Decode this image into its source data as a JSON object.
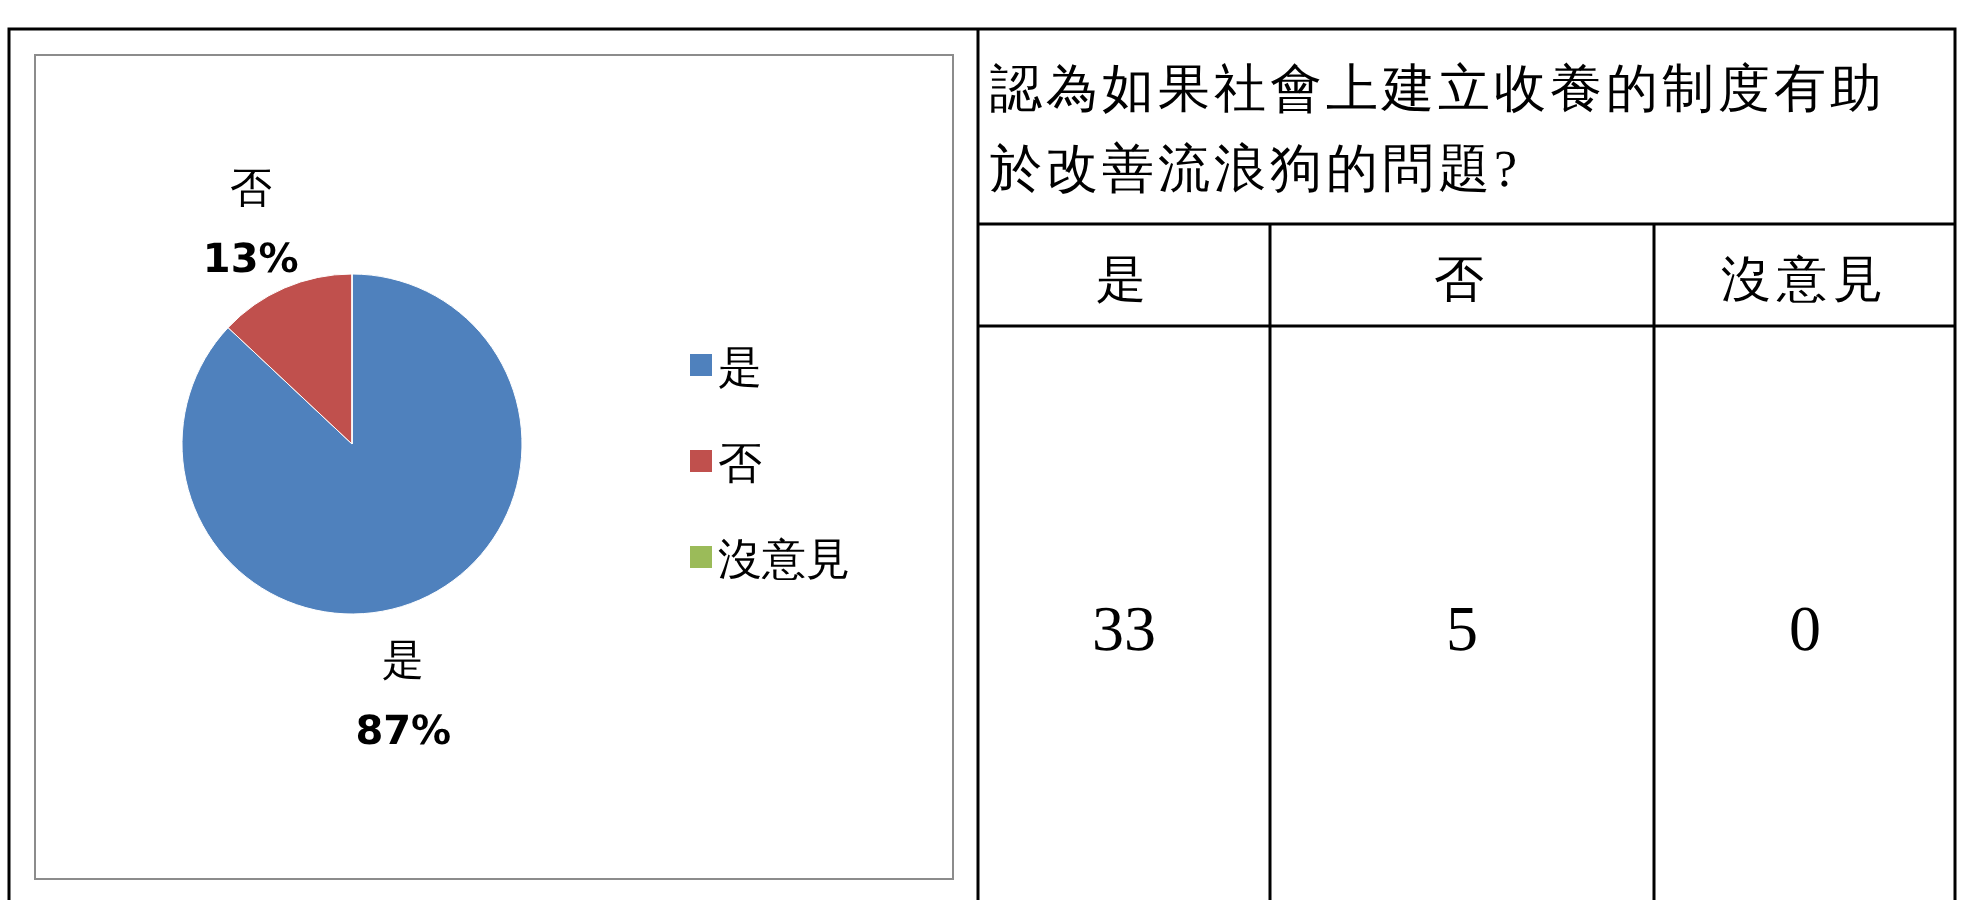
{
  "chart_data": [
    {
      "type": "pie",
      "categories": [
        "是",
        "否",
        "沒意見"
      ],
      "values": [
        87,
        13,
        0
      ],
      "colors": [
        "#4f81bd",
        "#c0504d",
        "#9bbb59"
      ],
      "value_labels": [
        "87%",
        "13%",
        null
      ],
      "legend": "right"
    },
    {
      "type": "other",
      "title": "認為如果社會上建立收養的制度有助於改善流浪狗的問題?",
      "categories": [
        "是",
        "否",
        "沒意見"
      ],
      "values": [
        33,
        5,
        0
      ],
      "data_labels": true
    }
  ]
}
